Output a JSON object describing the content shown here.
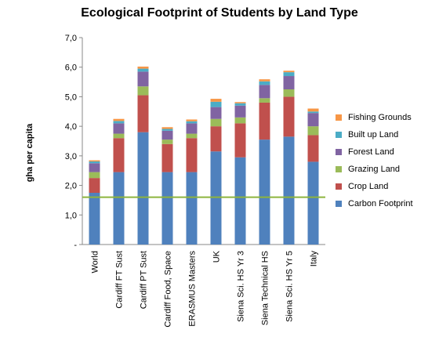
{
  "chart_data": {
    "type": "bar",
    "stacked": true,
    "title": "Ecological Footprint of Students by Land Type",
    "ylabel": "gha per capita",
    "xlabel": "",
    "ylim": [
      0,
      7
    ],
    "yticks": [
      "-",
      "1,0",
      "2,0",
      "3,0",
      "4,0",
      "5,0",
      "6,0",
      "7,0"
    ],
    "grid": false,
    "legend_position": "right",
    "categories": [
      "World",
      "Cardiff FT Sust",
      "Cardiff PT Sust",
      "Cardiff Food, Space",
      "ERASMUS Masters",
      "UK",
      "Siena Sci. HS Yr 3",
      "Siena Technical HS",
      "Siena Sci. HS Yr 5",
      "Italy"
    ],
    "series": [
      {
        "name": "Carbon Footprint",
        "color": "#4F81BD",
        "values": [
          1.75,
          2.45,
          3.8,
          2.45,
          2.45,
          3.15,
          2.95,
          3.55,
          3.65,
          2.8
        ]
      },
      {
        "name": "Crop Land",
        "color": "#C0504D",
        "values": [
          0.5,
          1.15,
          1.25,
          0.95,
          1.15,
          0.85,
          1.15,
          1.25,
          1.35,
          0.9
        ]
      },
      {
        "name": "Grazing Land",
        "color": "#9BBB59",
        "values": [
          0.2,
          0.15,
          0.3,
          0.15,
          0.15,
          0.25,
          0.2,
          0.15,
          0.25,
          0.3
        ]
      },
      {
        "name": "Forest Land",
        "color": "#8064A2",
        "values": [
          0.3,
          0.35,
          0.5,
          0.3,
          0.35,
          0.4,
          0.4,
          0.45,
          0.45,
          0.45
        ]
      },
      {
        "name": "Built up Land",
        "color": "#4BACC6",
        "values": [
          0.06,
          0.08,
          0.1,
          0.06,
          0.07,
          0.18,
          0.08,
          0.12,
          0.13,
          0.05
        ]
      },
      {
        "name": "Fishing Grounds",
        "color": "#F79646",
        "values": [
          0.04,
          0.07,
          0.07,
          0.06,
          0.06,
          0.1,
          0.04,
          0.07,
          0.05,
          0.1
        ]
      }
    ],
    "reference_line": {
      "value": 1.6,
      "color": "#8DB43E"
    }
  }
}
